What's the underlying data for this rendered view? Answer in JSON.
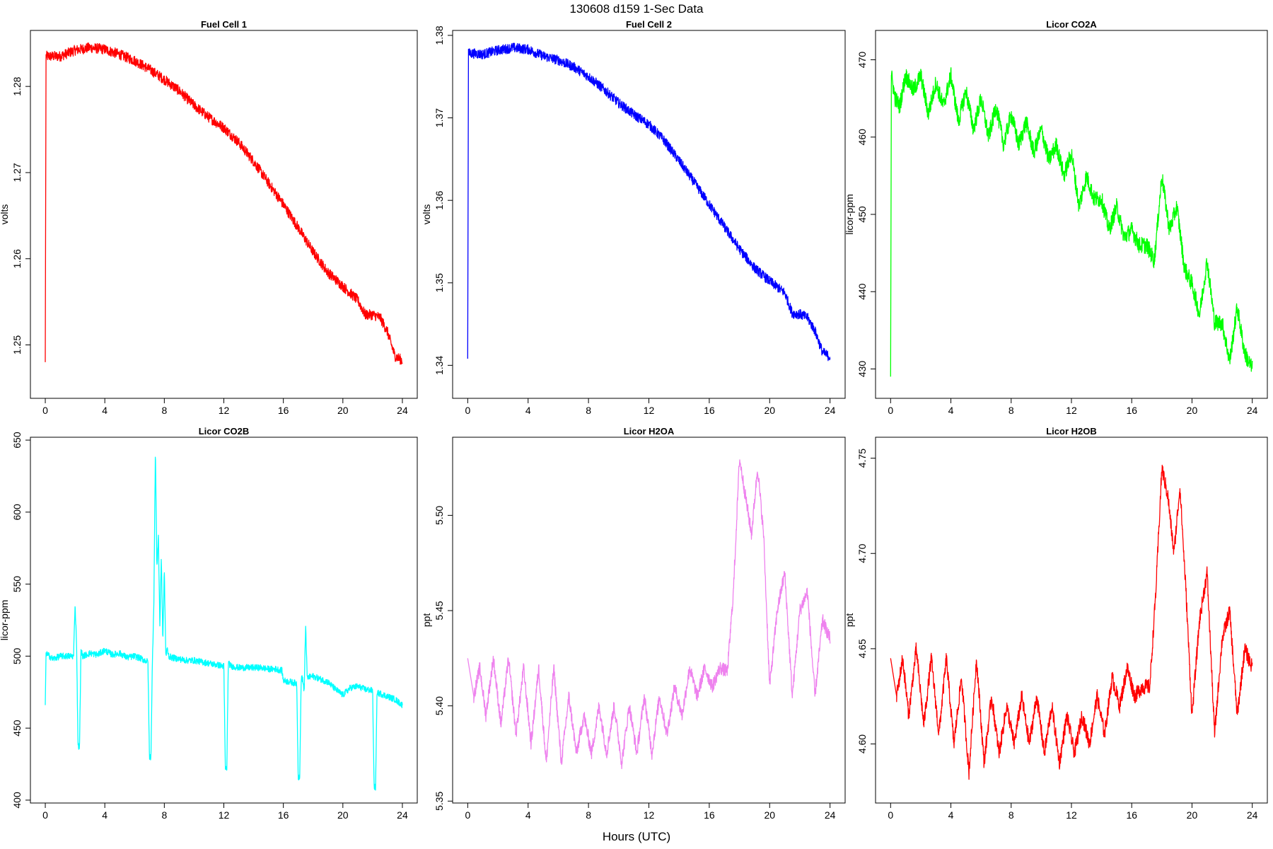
{
  "page": {
    "title": "130608   d159   1-Sec Data",
    "xlabel": "Hours (UTC)"
  },
  "chart_data": [
    {
      "type": "line",
      "title": "Fuel Cell 1",
      "ylabel": "volts",
      "color": "#ff0000",
      "xlim": [
        -1,
        25
      ],
      "ylim": [
        1.2438,
        1.2865
      ],
      "xticks": [
        0,
        4,
        8,
        12,
        16,
        20,
        24
      ],
      "yticks": [
        1.25,
        1.26,
        1.27,
        1.28
      ],
      "ytick_labels": [
        "1.25",
        "1.26",
        "1.27",
        "1.28"
      ],
      "x": [
        0,
        0.05,
        0.1,
        0.5,
        1,
        2,
        3,
        4,
        5,
        6,
        7,
        8,
        9,
        10,
        11,
        12,
        13,
        14,
        15,
        16,
        17,
        18,
        19,
        20,
        21,
        21.5,
        22,
        22.5,
        23,
        23.5,
        24
      ],
      "y": [
        1.248,
        1.2835,
        1.2835,
        1.2835,
        1.2835,
        1.2842,
        1.2845,
        1.2843,
        1.2837,
        1.283,
        1.282,
        1.2808,
        1.2795,
        1.2778,
        1.2764,
        1.2752,
        1.2735,
        1.2713,
        1.2688,
        1.2663,
        1.2636,
        1.2608,
        1.2584,
        1.2568,
        1.2552,
        1.2535,
        1.2535,
        1.2532,
        1.2515,
        1.2487,
        1.2482
      ],
      "noise": 0.0006
    },
    {
      "type": "line",
      "title": "Fuel Cell 2",
      "ylabel": "volts",
      "color": "#0000ff",
      "xlim": [
        -1,
        25
      ],
      "ylim": [
        1.336,
        1.3806
      ],
      "xticks": [
        0,
        4,
        8,
        12,
        16,
        20,
        24
      ],
      "yticks": [
        1.34,
        1.35,
        1.36,
        1.37,
        1.38
      ],
      "ytick_labels": [
        "1.34",
        "1.35",
        "1.36",
        "1.37",
        "1.38"
      ],
      "x": [
        0,
        0.05,
        0.1,
        0.5,
        1,
        2,
        3,
        4,
        5,
        6,
        7,
        8,
        9,
        10,
        11,
        12,
        13,
        14,
        15,
        16,
        17,
        18,
        19,
        20,
        21,
        21.5,
        22,
        22.5,
        23,
        23.5,
        24
      ],
      "y": [
        1.3408,
        1.378,
        1.3778,
        1.3778,
        1.3777,
        1.3782,
        1.3785,
        1.3783,
        1.3775,
        1.377,
        1.3762,
        1.375,
        1.3735,
        1.3718,
        1.3704,
        1.3692,
        1.3673,
        1.3648,
        1.3622,
        1.3595,
        1.3568,
        1.3541,
        1.3518,
        1.3502,
        1.3488,
        1.3463,
        1.3462,
        1.3458,
        1.3442,
        1.3416,
        1.341
      ],
      "noise": 0.0006
    },
    {
      "type": "line",
      "title": "Licor CO2A",
      "ylabel": "licor-ppm",
      "color": "#00ff00",
      "xlim": [
        -1,
        25
      ],
      "ylim": [
        426.2,
        473.8
      ],
      "xticks": [
        0,
        4,
        8,
        12,
        16,
        20,
        24
      ],
      "yticks": [
        430,
        440,
        450,
        460,
        470
      ],
      "ytick_labels": [
        "430",
        "440",
        "450",
        "460",
        "470"
      ],
      "x": [
        0,
        0.05,
        0.3,
        0.6,
        1,
        1.5,
        2,
        2.5,
        3,
        3.5,
        4,
        4.5,
        5,
        5.5,
        6,
        6.5,
        7,
        7.5,
        8,
        8.5,
        9,
        9.5,
        10,
        10.5,
        11,
        11.5,
        12,
        12.5,
        13,
        13.5,
        14,
        14.5,
        15,
        15.5,
        16,
        16.5,
        17,
        17.5,
        18,
        18.5,
        19,
        19.5,
        20,
        20.5,
        21,
        21.5,
        22,
        22.5,
        23,
        23.5,
        24
      ],
      "y": [
        429,
        468,
        465,
        464,
        468,
        466,
        468,
        463,
        467,
        464,
        468,
        462,
        466,
        461,
        465,
        460,
        464,
        459,
        463,
        459,
        462,
        458,
        461,
        457,
        459,
        455,
        458,
        451,
        455,
        452,
        452,
        448,
        451,
        447,
        448,
        446,
        446,
        444,
        455,
        448,
        451,
        443,
        441,
        437,
        444,
        436,
        436,
        431,
        438,
        432,
        430
      ],
      "noise": 1.1
    },
    {
      "type": "line",
      "title": "Licor CO2B",
      "ylabel": "licor-ppm",
      "color": "#00ffff",
      "xlim": [
        -1,
        25
      ],
      "ylim": [
        398,
        652
      ],
      "xticks": [
        0,
        4,
        8,
        12,
        16,
        20,
        24
      ],
      "yticks": [
        400,
        450,
        500,
        550,
        600,
        650
      ],
      "ytick_labels": [
        "400",
        "450",
        "500",
        "550",
        "600",
        "650"
      ],
      "x": [
        0,
        0.05,
        0.5,
        1,
        1.9,
        2.0,
        2.1,
        2.2,
        2.3,
        2.4,
        2.5,
        3,
        3.5,
        4,
        4.5,
        5,
        5.5,
        6,
        6.5,
        6.9,
        7.0,
        7.1,
        7.2,
        7.3,
        7.4,
        7.5,
        7.6,
        7.7,
        7.8,
        7.9,
        8.0,
        8.1,
        8.2,
        8.3,
        8.5,
        9,
        9.5,
        10,
        10.5,
        11,
        11.5,
        12,
        12.1,
        12.2,
        12.3,
        12.5,
        13,
        13.5,
        14,
        14.5,
        15,
        15.5,
        15.9,
        16.0,
        16.5,
        16.9,
        17.0,
        17.1,
        17.2,
        17.3,
        17.4,
        17.5,
        17.6,
        18,
        18.5,
        19,
        19.5,
        20,
        20.5,
        21,
        21.5,
        22,
        22.1,
        22.2,
        22.3,
        22.4,
        22.5,
        23,
        23.5,
        24
      ],
      "y": [
        466,
        502,
        498,
        500,
        500,
        536,
        510,
        438,
        437,
        505,
        500,
        502,
        501,
        504,
        501,
        502,
        499,
        500,
        498,
        496,
        430,
        430,
        496,
        540,
        645,
        560,
        585,
        520,
        570,
        510,
        560,
        500,
        505,
        500,
        499,
        498,
        497,
        497,
        496,
        495,
        494,
        493,
        422,
        422,
        495,
        493,
        492,
        492,
        492,
        492,
        491,
        491,
        490,
        483,
        482,
        481,
        416,
        416,
        485,
        484,
        475,
        522,
        485,
        486,
        484,
        482,
        477,
        473,
        478,
        479,
        477,
        476,
        409,
        409,
        476,
        474,
        474,
        472,
        470,
        466
      ],
      "noise": 2.2
    },
    {
      "type": "line",
      "title": "Licor H2OA",
      "ylabel": "ppt",
      "color": "#ee82ee",
      "xlim": [
        -1,
        25
      ],
      "ylim": [
        5.349,
        5.541
      ],
      "xticks": [
        0,
        4,
        8,
        12,
        16,
        20,
        24
      ],
      "yticks": [
        5.35,
        5.4,
        5.45,
        5.5
      ],
      "ytick_labels": [
        "5.35",
        "5.40",
        "5.45",
        "5.50"
      ],
      "x": [
        0,
        0.4,
        0.8,
        1.2,
        1.7,
        2.2,
        2.7,
        3.2,
        3.7,
        4.2,
        4.7,
        5.2,
        5.7,
        6.2,
        6.7,
        7.2,
        7.7,
        8.2,
        8.7,
        9.2,
        9.7,
        10.2,
        10.7,
        11.2,
        11.7,
        12.2,
        12.7,
        13.2,
        13.7,
        14.2,
        14.7,
        15.2,
        15.7,
        16.2,
        16.7,
        17.2,
        17.6,
        18.0,
        18.4,
        18.8,
        19.2,
        19.6,
        20.0,
        20.5,
        21.0,
        21.5,
        22.0,
        22.5,
        23.0,
        23.5,
        24
      ],
      "y": [
        5.425,
        5.405,
        5.42,
        5.395,
        5.425,
        5.39,
        5.425,
        5.385,
        5.42,
        5.38,
        5.42,
        5.37,
        5.42,
        5.37,
        5.405,
        5.375,
        5.395,
        5.375,
        5.4,
        5.375,
        5.4,
        5.37,
        5.4,
        5.375,
        5.405,
        5.375,
        5.405,
        5.385,
        5.41,
        5.395,
        5.42,
        5.405,
        5.42,
        5.41,
        5.42,
        5.418,
        5.46,
        5.53,
        5.51,
        5.49,
        5.525,
        5.49,
        5.41,
        5.45,
        5.47,
        5.405,
        5.45,
        5.46,
        5.405,
        5.445,
        5.435
      ],
      "noise": 0.0035
    },
    {
      "type": "line",
      "title": "Licor H2OB",
      "ylabel": "ppt",
      "color": "#ff0000",
      "xlim": [
        -1,
        25
      ],
      "ylim": [
        4.569,
        4.761
      ],
      "xticks": [
        0,
        4,
        8,
        12,
        16,
        20,
        24
      ],
      "yticks": [
        4.6,
        4.65,
        4.7,
        4.75
      ],
      "ytick_labels": [
        "4.60",
        "4.65",
        "4.70",
        "4.75"
      ],
      "x": [
        0,
        0.4,
        0.8,
        1.2,
        1.7,
        2.2,
        2.7,
        3.2,
        3.7,
        4.2,
        4.7,
        5.2,
        5.7,
        6.2,
        6.7,
        7.2,
        7.7,
        8.2,
        8.7,
        9.2,
        9.7,
        10.2,
        10.7,
        11.2,
        11.7,
        12.2,
        12.7,
        13.2,
        13.7,
        14.2,
        14.7,
        15.2,
        15.7,
        16.2,
        16.7,
        17.2,
        17.6,
        18.0,
        18.4,
        18.8,
        19.2,
        19.6,
        20.0,
        20.5,
        21.0,
        21.5,
        22.0,
        22.5,
        23.0,
        23.5,
        24
      ],
      "y": [
        4.645,
        4.625,
        4.645,
        4.615,
        4.65,
        4.61,
        4.645,
        4.605,
        4.645,
        4.6,
        4.635,
        4.585,
        4.645,
        4.59,
        4.625,
        4.595,
        4.62,
        4.6,
        4.625,
        4.6,
        4.625,
        4.595,
        4.62,
        4.59,
        4.615,
        4.595,
        4.615,
        4.6,
        4.625,
        4.605,
        4.635,
        4.62,
        4.64,
        4.625,
        4.63,
        4.63,
        4.68,
        4.745,
        4.73,
        4.7,
        4.735,
        4.68,
        4.615,
        4.665,
        4.69,
        4.605,
        4.655,
        4.67,
        4.615,
        4.65,
        4.64
      ],
      "noise": 0.004
    }
  ]
}
